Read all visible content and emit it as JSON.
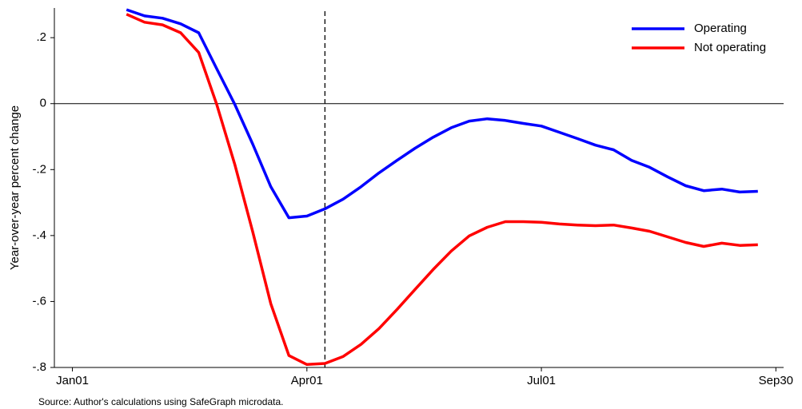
{
  "chart_data": {
    "type": "line",
    "ylabel": "Year-over-year percent change",
    "source": "Source: Author's calculations using SafeGraph microdata.",
    "x": [
      21,
      28,
      35,
      42,
      49,
      56,
      63,
      70,
      77,
      84,
      91,
      98,
      105,
      112,
      119,
      126,
      133,
      140,
      147,
      154,
      161,
      168,
      175,
      182,
      189,
      196,
      203,
      210,
      217,
      224,
      231,
      238,
      245,
      252,
      259,
      266
    ],
    "series": [
      {
        "name": "Operating",
        "color": "#0000ff",
        "values": [
          0.285,
          0.266,
          0.259,
          0.242,
          0.215,
          0.106,
          -0.002,
          -0.123,
          -0.252,
          -0.346,
          -0.341,
          -0.319,
          -0.29,
          -0.252,
          -0.21,
          -0.172,
          -0.135,
          -0.102,
          -0.073,
          -0.053,
          -0.046,
          -0.051,
          -0.06,
          -0.068,
          -0.087,
          -0.106,
          -0.126,
          -0.14,
          -0.172,
          -0.193,
          -0.222,
          -0.249,
          -0.264,
          -0.259,
          -0.268,
          -0.266
        ]
      },
      {
        "name": "Not operating",
        "color": "#ff0000",
        "values": [
          0.271,
          0.247,
          0.239,
          0.215,
          0.155,
          -0.002,
          -0.184,
          -0.389,
          -0.607,
          -0.764,
          -0.791,
          -0.788,
          -0.767,
          -0.73,
          -0.682,
          -0.624,
          -0.563,
          -0.503,
          -0.447,
          -0.401,
          -0.375,
          -0.358,
          -0.358,
          -0.36,
          -0.365,
          -0.368,
          -0.37,
          -0.368,
          -0.377,
          -0.387,
          -0.404,
          -0.421,
          -0.433,
          -0.423,
          -0.43,
          -0.428
        ]
      }
    ],
    "xlim": [
      -7,
      276
    ],
    "xticks": [
      {
        "value": 0,
        "label": "Jan01"
      },
      {
        "value": 91,
        "label": "Apr01"
      },
      {
        "value": 182,
        "label": "Jul01"
      },
      {
        "value": 273,
        "label": "Sep30"
      }
    ],
    "ylim": [
      -0.8,
      0.29
    ],
    "yticks": [
      {
        "value": 0.2,
        "label": ".2"
      },
      0,
      {
        "value": -0.2,
        "label": "-.2"
      },
      {
        "value": -0.4,
        "label": "-.4"
      },
      {
        "value": -0.6,
        "label": "-.6"
      },
      {
        "value": -0.8,
        "label": "-.8"
      }
    ],
    "vline": 98,
    "legend": "top-right"
  }
}
